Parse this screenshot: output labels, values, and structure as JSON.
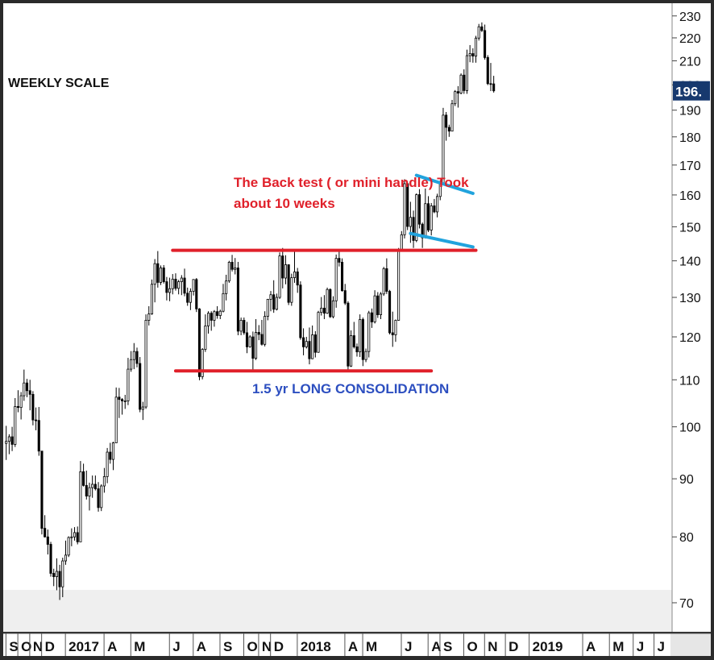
{
  "chart_data": {
    "type": "candlestick",
    "title": "WEEKLY SCALE",
    "y_scale": "log",
    "ylim": [
      66,
      236
    ],
    "y_ticks": [
      70,
      80,
      90,
      100,
      110,
      120,
      130,
      140,
      150,
      160,
      170,
      180,
      190,
      200,
      210,
      220,
      230
    ],
    "last_price_label": "196.",
    "x_tick_labels": [
      "S",
      "O",
      "N",
      "D",
      "2017",
      "A",
      "M",
      "J",
      "A",
      "S",
      "O",
      "N",
      "D",
      "2018",
      "A",
      "M",
      "J",
      "A",
      "S",
      "O",
      "N",
      "D",
      "2019",
      "A",
      "M",
      "J",
      "J"
    ],
    "x_tick_positions": [
      1,
      5,
      9,
      13,
      21,
      34,
      43,
      56,
      64,
      73,
      81,
      86,
      90,
      99,
      115,
      121,
      134,
      143,
      147,
      155,
      162,
      169,
      177,
      195,
      204,
      212,
      219
    ],
    "x_range": [
      -1,
      224
    ],
    "candles": [
      [
        96.7,
        100.2,
        93.5,
        97.1
      ],
      [
        97.1,
        98.5,
        94.6,
        98.0
      ],
      [
        98.0,
        100.0,
        95.2,
        96.5
      ],
      [
        96.5,
        106.0,
        96.0,
        104.2
      ],
      [
        104.2,
        107.7,
        103.0,
        104.0
      ],
      [
        104.0,
        107.3,
        101.5,
        106.5
      ],
      [
        106.5,
        112.3,
        105.4,
        109.3
      ],
      [
        109.3,
        110.2,
        106.2,
        107.6
      ],
      [
        107.6,
        110.0,
        103.4,
        106.8
      ],
      [
        106.8,
        107.5,
        100.3,
        101.4
      ],
      [
        101.4,
        104.0,
        99.3,
        101.3
      ],
      [
        101.3,
        104.1,
        94.3,
        95.2
      ],
      [
        95.2,
        95.2,
        80.4,
        81.4
      ],
      [
        81.4,
        83.6,
        79.9,
        80.0
      ],
      [
        80.0,
        81.2,
        77.2,
        78.8
      ],
      [
        78.8,
        79.2,
        73.8,
        74.3
      ],
      [
        74.3,
        75.0,
        72.4,
        73.8
      ],
      [
        73.8,
        76.6,
        71.8,
        74.6
      ],
      [
        74.6,
        75.6,
        70.4,
        72.3
      ],
      [
        72.3,
        76.7,
        70.8,
        76.2
      ],
      [
        76.2,
        79.4,
        75.6,
        77.1
      ],
      [
        77.1,
        80.1,
        76.8,
        79.9
      ],
      [
        79.9,
        81.4,
        78.5,
        80.0
      ],
      [
        80.0,
        81.6,
        79.4,
        80.7
      ],
      [
        80.7,
        81.7,
        78.8,
        79.2
      ],
      [
        79.2,
        93.3,
        79.2,
        91.3
      ],
      [
        91.3,
        92.8,
        88.6,
        88.8
      ],
      [
        88.8,
        91.5,
        86.3,
        86.9
      ],
      [
        86.9,
        89.3,
        84.4,
        88.4
      ],
      [
        88.4,
        90.6,
        86.6,
        89.0
      ],
      [
        89.0,
        90.6,
        87.9,
        88.2
      ],
      [
        88.2,
        89.4,
        84.2,
        84.9
      ],
      [
        84.9,
        89.0,
        84.3,
        88.7
      ],
      [
        88.7,
        92.0,
        87.5,
        90.4
      ],
      [
        90.4,
        95.8,
        89.2,
        95.0
      ],
      [
        95.0,
        96.8,
        92.8,
        93.6
      ],
      [
        93.6,
        97.0,
        91.6,
        96.8
      ],
      [
        96.8,
        108.3,
        96.8,
        106.2
      ],
      [
        106.2,
        108.2,
        101.8,
        105.7
      ],
      [
        105.7,
        106.0,
        102.5,
        105.4
      ],
      [
        105.4,
        106.7,
        103.7,
        105.4
      ],
      [
        105.4,
        115.0,
        104.5,
        112.4
      ],
      [
        112.4,
        116.6,
        111.8,
        114.6
      ],
      [
        114.6,
        118.5,
        112.4,
        116.5
      ],
      [
        116.5,
        117.4,
        112.8,
        113.7
      ],
      [
        113.7,
        115.2,
        103.0,
        103.6
      ],
      [
        103.6,
        105.2,
        101.4,
        104.1
      ],
      [
        104.1,
        125.6,
        103.7,
        124.1
      ],
      [
        124.1,
        127.7,
        122.8,
        125.7
      ],
      [
        125.7,
        134.8,
        125.5,
        133.5
      ],
      [
        133.5,
        140.5,
        128.7,
        139.2
      ],
      [
        139.2,
        142.8,
        132.6,
        134.0
      ],
      [
        134.0,
        138.7,
        133.3,
        138.0
      ],
      [
        138.0,
        138.8,
        133.7,
        134.2
      ],
      [
        134.2,
        135.5,
        129.2,
        131.3
      ],
      [
        131.3,
        135.3,
        129.0,
        132.3
      ],
      [
        132.3,
        136.3,
        130.8,
        134.9
      ],
      [
        134.9,
        136.5,
        131.8,
        132.4
      ],
      [
        132.4,
        134.7,
        130.8,
        134.2
      ],
      [
        134.2,
        136.0,
        130.6,
        135.2
      ],
      [
        135.2,
        137.8,
        130.3,
        131.1
      ],
      [
        131.1,
        132.6,
        127.8,
        128.7
      ],
      [
        128.7,
        132.4,
        126.7,
        131.6
      ],
      [
        131.6,
        134.9,
        130.5,
        134.8
      ],
      [
        134.8,
        135.2,
        126.2,
        127.0
      ],
      [
        127.0,
        127.2,
        109.9,
        110.7
      ],
      [
        110.7,
        117.3,
        110.1,
        117.0
      ],
      [
        117.0,
        125.6,
        116.4,
        122.7
      ],
      [
        122.7,
        126.4,
        120.8,
        125.9
      ],
      [
        125.9,
        126.4,
        121.5,
        124.1
      ],
      [
        124.1,
        126.7,
        122.5,
        126.3
      ],
      [
        126.3,
        127.7,
        124.5,
        125.3
      ],
      [
        125.3,
        126.8,
        124.4,
        126.4
      ],
      [
        126.4,
        133.6,
        126.1,
        131.0
      ],
      [
        131.0,
        136.1,
        129.2,
        134.4
      ],
      [
        134.4,
        140.0,
        133.9,
        139.6
      ],
      [
        139.6,
        141.7,
        137.0,
        137.6
      ],
      [
        137.6,
        140.8,
        136.2,
        138.0
      ],
      [
        138.0,
        139.7,
        120.4,
        121.4
      ],
      [
        121.4,
        124.8,
        120.4,
        124.1
      ],
      [
        124.1,
        124.8,
        120.5,
        121.0
      ],
      [
        121.0,
        123.7,
        116.1,
        117.6
      ],
      [
        117.6,
        120.4,
        117.4,
        120.0
      ],
      [
        120.0,
        121.3,
        112.1,
        114.9
      ],
      [
        114.9,
        124.4,
        114.5,
        121.1
      ],
      [
        121.1,
        122.9,
        119.2,
        120.6
      ],
      [
        120.6,
        124.2,
        117.9,
        118.2
      ],
      [
        118.2,
        126.4,
        117.7,
        125.1
      ],
      [
        125.1,
        129.6,
        124.1,
        129.5
      ],
      [
        129.5,
        131.7,
        126.4,
        130.7
      ],
      [
        130.7,
        134.6,
        126.0,
        126.9
      ],
      [
        126.9,
        131.0,
        126.6,
        130.0
      ],
      [
        130.0,
        142.4,
        129.6,
        141.4
      ],
      [
        141.4,
        143.7,
        132.4,
        135.2
      ],
      [
        135.2,
        141.6,
        133.5,
        138.9
      ],
      [
        138.9,
        139.0,
        128.0,
        128.7
      ],
      [
        128.7,
        136.4,
        127.8,
        135.3
      ],
      [
        135.3,
        142.8,
        133.9,
        136.9
      ],
      [
        136.9,
        138.0,
        131.2,
        133.3
      ],
      [
        133.3,
        134.3,
        119.3,
        119.8
      ],
      [
        119.8,
        122.1,
        115.6,
        117.6
      ],
      [
        117.6,
        120.0,
        117.2,
        118.9
      ],
      [
        118.9,
        122.3,
        113.5,
        114.8
      ],
      [
        114.8,
        122.8,
        114.7,
        120.5
      ],
      [
        120.5,
        121.4,
        115.1,
        116.3
      ],
      [
        116.3,
        126.5,
        116.2,
        126.1
      ],
      [
        126.1,
        130.1,
        125.3,
        127.2
      ],
      [
        127.2,
        130.6,
        124.4,
        125.9
      ],
      [
        125.9,
        132.6,
        125.7,
        132.1
      ],
      [
        132.1,
        132.4,
        124.7,
        125.0
      ],
      [
        125.0,
        130.3,
        124.6,
        129.1
      ],
      [
        129.1,
        141.8,
        127.3,
        140.7
      ],
      [
        140.7,
        143.2,
        138.4,
        139.6
      ],
      [
        139.6,
        140.7,
        131.5,
        131.8
      ],
      [
        131.8,
        133.6,
        128.0,
        128.5
      ],
      [
        128.5,
        129.0,
        112.2,
        113.1
      ],
      [
        113.1,
        121.6,
        112.9,
        120.3
      ],
      [
        120.3,
        123.7,
        117.2,
        117.6
      ],
      [
        117.6,
        118.4,
        115.3,
        116.4
      ],
      [
        116.4,
        125.6,
        115.2,
        124.3
      ],
      [
        124.3,
        124.8,
        113.1,
        114.6
      ],
      [
        114.6,
        117.2,
        114.0,
        116.5
      ],
      [
        116.5,
        126.5,
        115.1,
        126.0
      ],
      [
        126.0,
        127.1,
        122.2,
        123.7
      ],
      [
        123.7,
        131.9,
        123.3,
        130.4
      ],
      [
        130.4,
        131.4,
        124.7,
        125.5
      ],
      [
        125.5,
        131.4,
        124.4,
        130.9
      ],
      [
        130.9,
        138.3,
        130.4,
        137.8
      ],
      [
        137.8,
        140.7,
        130.9,
        131.6
      ],
      [
        131.6,
        132.0,
        120.6,
        121.0
      ],
      [
        121.0,
        126.3,
        117.6,
        120.5
      ],
      [
        120.5,
        124.3,
        118.8,
        124.1
      ],
      [
        124.1,
        143.7,
        124.0,
        143.1
      ],
      [
        143.1,
        148.7,
        142.6,
        147.6
      ],
      [
        147.6,
        165.2,
        146.5,
        163.7
      ],
      [
        163.7,
        164.0,
        149.0,
        150.1
      ],
      [
        150.1,
        157.8,
        145.2,
        152.9
      ],
      [
        152.9,
        155.0,
        143.7,
        145.9
      ],
      [
        145.9,
        160.5,
        145.4,
        160.1
      ],
      [
        160.1,
        161.9,
        149.5,
        150.8
      ],
      [
        150.8,
        151.3,
        143.7,
        146.7
      ],
      [
        146.7,
        162.1,
        146.5,
        157.2
      ],
      [
        157.2,
        159.6,
        148.4,
        149.0
      ],
      [
        149.0,
        157.4,
        147.4,
        156.5
      ],
      [
        156.5,
        158.7,
        154.2,
        154.6
      ],
      [
        154.6,
        160.4,
        152.9,
        159.5
      ],
      [
        159.5,
        164.8,
        158.3,
        163.7
      ],
      [
        163.7,
        190.9,
        163.7,
        188.1
      ],
      [
        188.1,
        189.3,
        178.6,
        183.5
      ],
      [
        183.5,
        184.5,
        180.0,
        182.1
      ],
      [
        182.1,
        194.0,
        182.1,
        192.5
      ],
      [
        192.5,
        197.9,
        191.6,
        197.3
      ],
      [
        197.3,
        199.5,
        191.0,
        196.7
      ],
      [
        196.7,
        204.7,
        196.2,
        204.0
      ],
      [
        204.0,
        206.4,
        196.4,
        197.7
      ],
      [
        197.7,
        214.8,
        196.4,
        212.2
      ],
      [
        212.2,
        216.8,
        209.4,
        213.1
      ],
      [
        213.1,
        215.4,
        209.2,
        212.0
      ],
      [
        212.0,
        220.9,
        209.2,
        219.9
      ],
      [
        219.9,
        226.3,
        218.8,
        225.0
      ],
      [
        225.0,
        227.0,
        222.6,
        223.3
      ],
      [
        223.3,
        226.0,
        210.5,
        211.4
      ],
      [
        211.4,
        212.4,
        199.9,
        200.5
      ],
      [
        200.5,
        209.1,
        197.5,
        200.4
      ],
      [
        200.4,
        203.7,
        196.9,
        197.6
      ]
    ],
    "annotations": {
      "backtest_text": "The Back test  ( or mini handle) Took\nabout 10 weeks",
      "consolidation_text": "1.5 yr LONG CONSOLIDATION",
      "backtest_color": "#e0202a",
      "consolidation_color": "#2d4fc0",
      "resistance_level": 143,
      "support_level": 112,
      "resistance_color": "#e0202a",
      "flag_color": "#21a3dd"
    },
    "colors": {
      "up": "#ffffff",
      "down": "#000000",
      "outline": "#000000",
      "last_price_bg": "#17396e",
      "grid_panel": "#f0f0f0"
    },
    "grid": false
  }
}
